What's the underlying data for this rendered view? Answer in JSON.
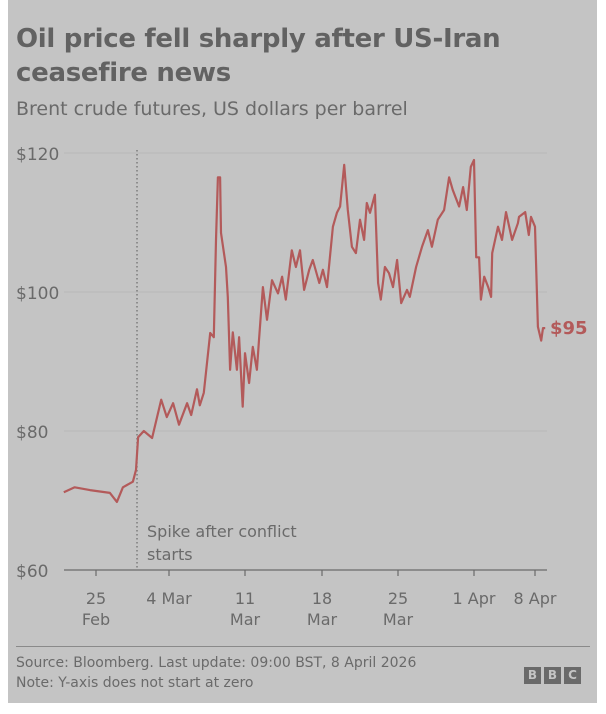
{
  "header": {
    "title": "Oil price fell sharply after US-Iran ceasefire news",
    "subtitle": "Brent crude futures, US dollars per barrel"
  },
  "footer": {
    "source": "Source: Bloomberg. Last update: 09:00 BST, 8 April 2026",
    "note": "Note: Y-axis does not start at zero",
    "logo": "BBC"
  },
  "chart_data": {
    "type": "line",
    "title": "Oil price fell sharply after US-Iran ceasefire news",
    "subtitle": "Brent crude futures, US dollars per barrel",
    "ylim": [
      60,
      120
    ],
    "yticks": [
      60,
      80,
      100,
      120
    ],
    "ytick_labels": [
      "$60",
      "$80",
      "$100",
      "$120"
    ],
    "xticks": [
      "2026-02-25",
      "2026-03-04",
      "2026-03-11",
      "2026-03-18",
      "2026-03-25",
      "2026-04-01",
      "2026-04-08"
    ],
    "xtick_labels": [
      [
        "25",
        "Feb"
      ],
      [
        "4 Mar",
        ""
      ],
      [
        "11",
        "Mar"
      ],
      [
        "18",
        "Mar"
      ],
      [
        "25",
        "Mar"
      ],
      [
        "1 Apr",
        ""
      ],
      [
        "8 Apr",
        ""
      ]
    ],
    "grid": true,
    "line_color": "#b35a5a",
    "end_label": "$95",
    "annotation": {
      "date": "2026-03-01",
      "lines": [
        "Spike after conflict",
        "starts"
      ]
    },
    "series": [
      {
        "points": [
          [
            "2026-02-21T22",
            71.2
          ],
          [
            "2026-02-22T23",
            71.9
          ],
          [
            "2026-02-24T10",
            71.5
          ],
          [
            "2026-02-26T08",
            71.1
          ],
          [
            "2026-02-27T00",
            69.8
          ],
          [
            "2026-02-27T14",
            71.9
          ],
          [
            "2026-02-28T13",
            72.7
          ],
          [
            "2026-02-28T20",
            74.4
          ],
          [
            "2026-03-01T01",
            79.1
          ],
          [
            "2026-03-01T14",
            80
          ],
          [
            "2026-03-02T09",
            79
          ],
          [
            "2026-03-03T06",
            84.5
          ],
          [
            "2026-03-03T19",
            82
          ],
          [
            "2026-03-04T09",
            84
          ],
          [
            "2026-03-04T22",
            80.9
          ],
          [
            "2026-03-05T16",
            84
          ],
          [
            "2026-03-06T01",
            82.3
          ],
          [
            "2026-03-06T14",
            86
          ],
          [
            "2026-03-06T20",
            83.7
          ],
          [
            "2026-03-07T05",
            85.5
          ],
          [
            "2026-03-07T19",
            94.1
          ],
          [
            "2026-03-08T03",
            93.5
          ],
          [
            "2026-03-08T08",
            107.5
          ],
          [
            "2026-03-08T12",
            116.5
          ],
          [
            "2026-03-08T17",
            116.5
          ],
          [
            "2026-03-08T19",
            108.5
          ],
          [
            "2026-03-09T06",
            103.6
          ],
          [
            "2026-03-09T10",
            99.3
          ],
          [
            "2026-03-09T15",
            88.8
          ],
          [
            "2026-03-09T21",
            94.2
          ],
          [
            "2026-03-10T06",
            88.8
          ],
          [
            "2026-03-10T11",
            93.5
          ],
          [
            "2026-03-10T19",
            83.5
          ],
          [
            "2026-03-11T00",
            91.2
          ],
          [
            "2026-03-11T09",
            86.9
          ],
          [
            "2026-03-11T17",
            92.1
          ],
          [
            "2026-03-12T02",
            88.8
          ],
          [
            "2026-03-12T06",
            92.7
          ],
          [
            "2026-03-12T15",
            100.7
          ],
          [
            "2026-03-13T00",
            96
          ],
          [
            "2026-03-13T11",
            101.7
          ],
          [
            "2026-03-14T00",
            99.8
          ],
          [
            "2026-03-14T09",
            102.2
          ],
          [
            "2026-03-14T17",
            98.9
          ],
          [
            "2026-03-15T06",
            106
          ],
          [
            "2026-03-15T15",
            103.6
          ],
          [
            "2026-03-16T00",
            106
          ],
          [
            "2026-03-16T09",
            100.3
          ],
          [
            "2026-03-16T20",
            103.2
          ],
          [
            "2026-03-17T04",
            104.6
          ],
          [
            "2026-03-17T18",
            101.3
          ],
          [
            "2026-03-18T02",
            103.2
          ],
          [
            "2026-03-18T11",
            100.7
          ],
          [
            "2026-03-19T00",
            109.4
          ],
          [
            "2026-03-19T09",
            111.4
          ],
          [
            "2026-03-19T16",
            112.3
          ],
          [
            "2026-03-20T01",
            118.3
          ],
          [
            "2026-03-20T09",
            111.8
          ],
          [
            "2026-03-20T18",
            106.5
          ],
          [
            "2026-03-21T03",
            105.6
          ],
          [
            "2026-03-21T12",
            110.4
          ],
          [
            "2026-03-21T21",
            107.5
          ],
          [
            "2026-03-22T03",
            112.8
          ],
          [
            "2026-03-22T10",
            111.4
          ],
          [
            "2026-03-22T21",
            114
          ],
          [
            "2026-03-23T04",
            101.3
          ],
          [
            "2026-03-23T10",
            98.9
          ],
          [
            "2026-03-23T19",
            103.6
          ],
          [
            "2026-03-24T04",
            102.7
          ],
          [
            "2026-03-24T13",
            100.7
          ],
          [
            "2026-03-24T22",
            104.6
          ],
          [
            "2026-03-25T07",
            98.4
          ],
          [
            "2026-03-25T20",
            100.3
          ],
          [
            "2026-03-26T02",
            99.3
          ],
          [
            "2026-03-26T16",
            103.6
          ],
          [
            "2026-03-27T05",
            106.5
          ],
          [
            "2026-03-27T18",
            108.9
          ],
          [
            "2026-03-28T03",
            106.5
          ],
          [
            "2026-03-28T16",
            110.4
          ],
          [
            "2026-03-29T06",
            111.8
          ],
          [
            "2026-03-29T17",
            116.5
          ],
          [
            "2026-03-30T01",
            114.7
          ],
          [
            "2026-03-30T15",
            112.3
          ],
          [
            "2026-03-31T00",
            115.1
          ],
          [
            "2026-03-31T08",
            111.8
          ],
          [
            "2026-03-31T17",
            118
          ],
          [
            "2026-04-01T00",
            119
          ],
          [
            "2026-04-01T06",
            105
          ],
          [
            "2026-04-01T14",
            105
          ],
          [
            "2026-04-01T19",
            98.9
          ],
          [
            "2026-04-02T04",
            102.2
          ],
          [
            "2026-04-02T15",
            100.7
          ],
          [
            "2026-04-02T23",
            99.3
          ],
          [
            "2026-04-03T02",
            105.6
          ],
          [
            "2026-04-03T18",
            109.4
          ],
          [
            "2026-04-04T05",
            107.5
          ],
          [
            "2026-04-04T16",
            111.5
          ],
          [
            "2026-04-05T09",
            107.5
          ],
          [
            "2026-04-06T01",
            109.9
          ],
          [
            "2026-04-06T04",
            110.8
          ],
          [
            "2026-04-06T21",
            111.5
          ],
          [
            "2026-04-07T07",
            108.2
          ],
          [
            "2026-04-07T13",
            110.8
          ],
          [
            "2026-04-08T00",
            109.4
          ],
          [
            "2026-04-08T08",
            95
          ],
          [
            "2026-04-08T17",
            93
          ],
          [
            "2026-04-08T22",
            94.8
          ],
          [
            "2026-04-09T04",
            94.8
          ]
        ]
      }
    ]
  }
}
